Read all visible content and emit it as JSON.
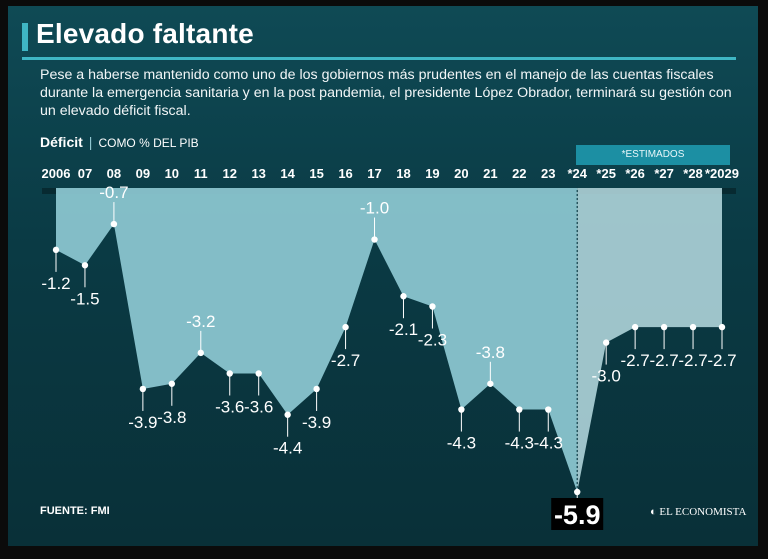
{
  "header": {
    "title": "Elevado faltante",
    "subtitle": "Pese a haberse mantenido como uno de los gobiernos más prudentes en el manejo de las cuentas fiscales durante la emergencia sanitaria y en la post pandemia, el presidente López Obrador, terminará su gestión con un elevado déficit fiscal."
  },
  "measure": {
    "name": "Déficit",
    "separator": "|",
    "unit": "COMO % DEL PIB"
  },
  "estimated_label": "*ESTIMADOS",
  "footer": {
    "source": "FUENTE: FMI",
    "brand": "EL ECONOMISTA"
  },
  "colors": {
    "area": "#8ec9d3",
    "estimated_area": "#b8dde3",
    "accent": "#3fb6c4",
    "dashed": "#0d3d47"
  },
  "chart_data": {
    "type": "area",
    "title": "Elevado faltante",
    "ylabel": "COMO % DEL PIB",
    "categories": [
      "2006",
      "07",
      "08",
      "09",
      "10",
      "11",
      "12",
      "13",
      "14",
      "15",
      "16",
      "17",
      "18",
      "19",
      "20",
      "21",
      "22",
      "23",
      "*24",
      "*25",
      "*26",
      "*27",
      "*28",
      "*2029"
    ],
    "series": [
      {
        "name": "Déficit",
        "values": [
          -1.2,
          -1.5,
          -0.7,
          -3.9,
          -3.8,
          -3.2,
          -3.6,
          -3.6,
          -4.4,
          -3.9,
          -2.7,
          -1.0,
          -2.1,
          -2.3,
          -4.3,
          -3.8,
          -4.3,
          -4.3,
          -5.9,
          -3.0,
          -2.7,
          -2.7,
          -2.7,
          -2.7
        ]
      }
    ],
    "labels": [
      "-1.2",
      "-1.5",
      "-0.7",
      "-3.9",
      "-3.8",
      "-3.2",
      "-3.6",
      "-3.6",
      "-4.4",
      "-3.9",
      "-2.7",
      "-1.0",
      "-2.1",
      "-2.3",
      "-4.3",
      "-3.8",
      "-4.3",
      "-4.3",
      "-5.9",
      "-3.0",
      "-2.7",
      "-2.7",
      "-2.7",
      "-2.7"
    ],
    "estimated_from": "*24",
    "ylim": [
      -5.9,
      0
    ],
    "grid": false
  }
}
